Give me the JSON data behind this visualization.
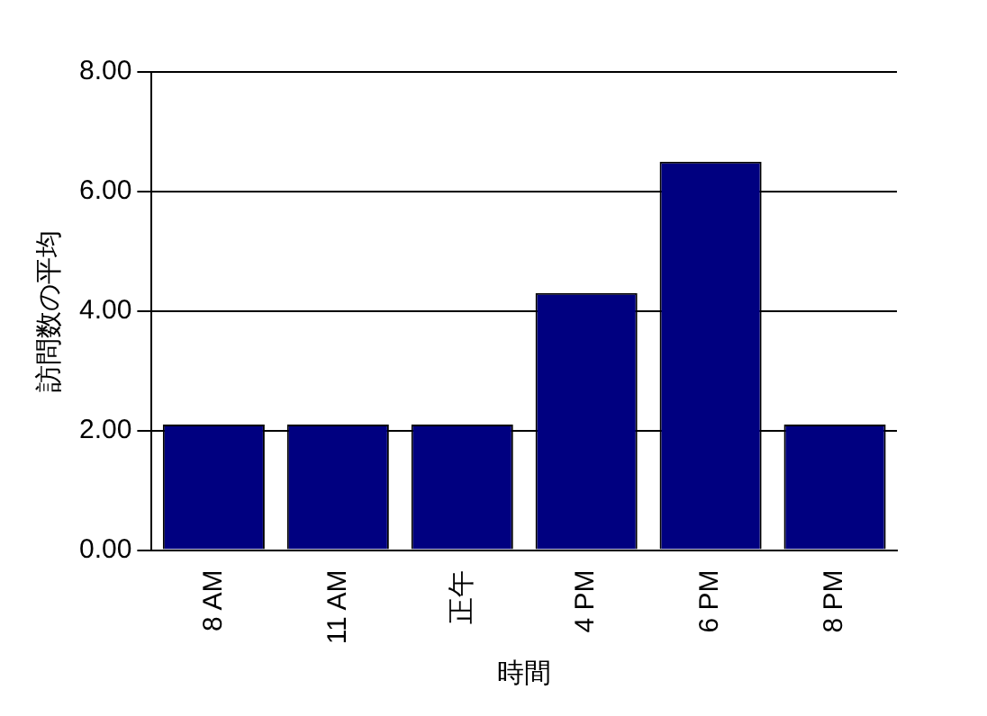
{
  "chart_data": {
    "type": "bar",
    "xlabel": "時間",
    "ylabel": "訪問数の平均",
    "categories": [
      "8 AM",
      "11 AM",
      "正午",
      "4 PM",
      "6 PM",
      "8 PM"
    ],
    "values": [
      2.1,
      2.1,
      2.1,
      4.3,
      6.5,
      2.1
    ],
    "color": "#000080",
    "ylim": [
      0,
      8
    ],
    "yticks": [
      {
        "value": 0,
        "label": "0.00"
      },
      {
        "value": 2,
        "label": "2.00"
      },
      {
        "value": 4,
        "label": "4.00"
      },
      {
        "value": 6,
        "label": "6.00"
      },
      {
        "value": 8,
        "label": "8.00"
      }
    ],
    "grid": "y",
    "legend": false
  }
}
